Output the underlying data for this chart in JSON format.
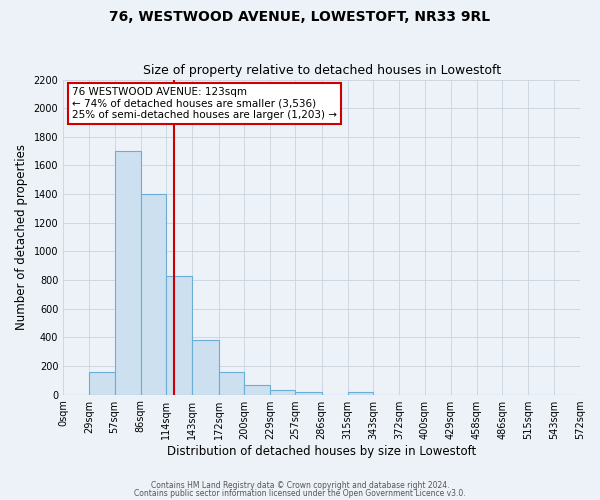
{
  "title": "76, WESTWOOD AVENUE, LOWESTOFT, NR33 9RL",
  "subtitle": "Size of property relative to detached houses in Lowestoft",
  "xlabel": "Distribution of detached houses by size in Lowestoft",
  "ylabel": "Number of detached properties",
  "bar_edges": [
    0,
    29,
    57,
    86,
    114,
    143,
    172,
    200,
    229,
    257,
    286,
    315,
    343,
    372,
    400,
    429,
    458,
    486,
    515,
    543,
    572
  ],
  "bar_heights": [
    0,
    155,
    1700,
    1400,
    830,
    380,
    160,
    65,
    30,
    15,
    0,
    15,
    0,
    0,
    0,
    0,
    0,
    0,
    0,
    0
  ],
  "bar_color": "#cde0f0",
  "bar_edge_color": "#6aaed6",
  "grid_color": "#c8d4e0",
  "bg_color": "#edf2f8",
  "property_size": 123,
  "vline_color": "#cc0000",
  "annotation_text": "76 WESTWOOD AVENUE: 123sqm\n← 74% of detached houses are smaller (3,536)\n25% of semi-detached houses are larger (1,203) →",
  "annotation_box_color": "#ffffff",
  "annotation_box_edge": "#cc0000",
  "ylim": [
    0,
    2200
  ],
  "yticks": [
    0,
    200,
    400,
    600,
    800,
    1000,
    1200,
    1400,
    1600,
    1800,
    2000,
    2200
  ],
  "footer_line1": "Contains HM Land Registry data © Crown copyright and database right 2024.",
  "footer_line2": "Contains public sector information licensed under the Open Government Licence v3.0.",
  "title_fontsize": 10,
  "subtitle_fontsize": 9,
  "tick_label_fontsize": 7,
  "axis_label_fontsize": 8.5,
  "annotation_fontsize": 7.5,
  "footer_fontsize": 5.5
}
